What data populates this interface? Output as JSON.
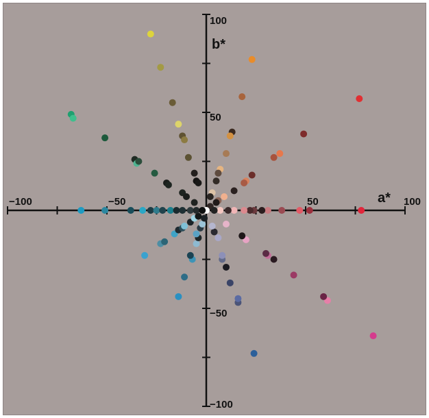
{
  "chart_data": {
    "type": "scatter",
    "xlabel": "a*",
    "ylabel": "b*",
    "xlim": [
      -100,
      100
    ],
    "ylim": [
      -100,
      100
    ],
    "grid": false,
    "x_ticks": [
      -100,
      -50,
      50,
      100
    ],
    "y_ticks": [
      100,
      50,
      -50,
      -100
    ],
    "x_tick_labels": [
      "−100",
      "−50",
      "50",
      "100"
    ],
    "y_tick_labels": [
      "100",
      "50",
      "−50",
      "−100"
    ],
    "points": [
      {
        "a": -28,
        "b": 90,
        "color": "#ddd43c"
      },
      {
        "a": -23,
        "b": 73,
        "color": "#a39a44"
      },
      {
        "a": -17,
        "b": 55,
        "color": "#6a5c37"
      },
      {
        "a": -14,
        "b": 44,
        "color": "#ddd46a"
      },
      {
        "a": -12,
        "b": 38,
        "color": "#5f5232"
      },
      {
        "a": -11,
        "b": 36,
        "color": "#8c7b42"
      },
      {
        "a": -9,
        "b": 27,
        "color": "#5c5233"
      },
      {
        "a": -6,
        "b": 19,
        "color": "#231f1d"
      },
      {
        "a": -5,
        "b": 15,
        "color": "#141312"
      },
      {
        "a": -4,
        "b": 14,
        "color": "#1a1918"
      },
      {
        "a": 23,
        "b": 77,
        "color": "#e98c2a"
      },
      {
        "a": 18,
        "b": 58,
        "color": "#a8643c"
      },
      {
        "a": 13,
        "b": 40,
        "color": "#3b2a20"
      },
      {
        "a": 12,
        "b": 38,
        "color": "#d39142"
      },
      {
        "a": 10,
        "b": 29,
        "color": "#a77b55"
      },
      {
        "a": 7,
        "b": 21,
        "color": "#e6b581"
      },
      {
        "a": 6,
        "b": 19,
        "color": "#5e4b3f"
      },
      {
        "a": 5,
        "b": 15,
        "color": "#322b26"
      },
      {
        "a": 3,
        "b": 9,
        "color": "#dcc2a6"
      },
      {
        "a": 2,
        "b": 7,
        "color": "#2a2522"
      },
      {
        "a": 77,
        "b": 57,
        "color": "#e12f32"
      },
      {
        "a": 49,
        "b": 39,
        "color": "#7e2c2c"
      },
      {
        "a": 37,
        "b": 29,
        "color": "#e7784c"
      },
      {
        "a": 34,
        "b": 27,
        "color": "#a8533d"
      },
      {
        "a": 23,
        "b": 18,
        "color": "#6b2e2a"
      },
      {
        "a": 20,
        "b": 15,
        "color": "#d9825e"
      },
      {
        "a": 19,
        "b": 14,
        "color": "#a85b45"
      },
      {
        "a": 14,
        "b": 10,
        "color": "#2b2120"
      },
      {
        "a": 9,
        "b": 7,
        "color": "#f0b08e"
      },
      {
        "a": 6,
        "b": 5,
        "color": "#8a6456"
      },
      {
        "a": 5,
        "b": 4,
        "color": "#211a19"
      },
      {
        "a": 2,
        "b": 2,
        "color": "#302624"
      },
      {
        "a": 78,
        "b": 0,
        "color": "#e1263b"
      },
      {
        "a": 52,
        "b": 0,
        "color": "#9b2f3c"
      },
      {
        "a": 47,
        "b": 0,
        "color": "#e25a66"
      },
      {
        "a": 38,
        "b": 0,
        "color": "#9a4a52"
      },
      {
        "a": 31,
        "b": 0,
        "color": "#c77b80"
      },
      {
        "a": 28,
        "b": 0,
        "color": "#2a1d1e"
      },
      {
        "a": 24,
        "b": 0,
        "color": "#6b3a3e"
      },
      {
        "a": 22,
        "b": 0,
        "color": "#4b2b2d"
      },
      {
        "a": 19,
        "b": 0,
        "color": "#dc8a8f"
      },
      {
        "a": 14,
        "b": 0,
        "color": "#f0b5b6"
      },
      {
        "a": 11,
        "b": 0,
        "color": "#3a2a2b"
      },
      {
        "a": 7,
        "b": 0,
        "color": "#f3c6c0"
      },
      {
        "a": 4,
        "b": 0,
        "color": "#222"
      },
      {
        "a": 0,
        "b": 0,
        "color": "#ffffff"
      },
      {
        "a": 84,
        "b": -64,
        "color": "#d43c8d"
      },
      {
        "a": 61,
        "b": -46,
        "color": "#e67fa8"
      },
      {
        "a": 59,
        "b": -44,
        "color": "#6a2446"
      },
      {
        "a": 44,
        "b": -33,
        "color": "#9b3b65"
      },
      {
        "a": 34,
        "b": -25,
        "color": "#2a1a21"
      },
      {
        "a": 31,
        "b": -23,
        "color": "#c46d9a"
      },
      {
        "a": 30,
        "b": -22,
        "color": "#5a2c45"
      },
      {
        "a": 20,
        "b": -15,
        "color": "#e7a3c4"
      },
      {
        "a": 18,
        "b": -13,
        "color": "#1e1719"
      },
      {
        "a": 10,
        "b": -7,
        "color": "#e6b4c9"
      },
      {
        "a": 24,
        "b": -73,
        "color": "#2b5f9a"
      },
      {
        "a": 16,
        "b": -47,
        "color": "#4a5478"
      },
      {
        "a": 16,
        "b": -45,
        "color": "#5b6ba3"
      },
      {
        "a": 12,
        "b": -37,
        "color": "#3a4467"
      },
      {
        "a": 10,
        "b": -29,
        "color": "#1b1b22"
      },
      {
        "a": 8,
        "b": -25,
        "color": "#626a8a"
      },
      {
        "a": 8,
        "b": -23,
        "color": "#8d90b8"
      },
      {
        "a": 6,
        "b": -14,
        "color": "#a9a8c8"
      },
      {
        "a": 4,
        "b": -11,
        "color": "#2a2930"
      },
      {
        "a": 3,
        "b": -8,
        "color": "#b5b6cf"
      },
      {
        "a": -14,
        "b": -44,
        "color": "#2a90c2"
      },
      {
        "a": -11,
        "b": -34,
        "color": "#2e6d87"
      },
      {
        "a": -7,
        "b": -25,
        "color": "#3e94b7"
      },
      {
        "a": -8,
        "b": -23,
        "color": "#1b4353"
      },
      {
        "a": -5,
        "b": -17,
        "color": "#8ebad1"
      },
      {
        "a": -4,
        "b": -14,
        "color": "#1e2628"
      },
      {
        "a": -5,
        "b": -12,
        "color": "#5aa2c4"
      },
      {
        "a": -3,
        "b": -9,
        "color": "#2a3a44"
      },
      {
        "a": -2,
        "b": -7,
        "color": "#9cc4d8"
      },
      {
        "a": -1,
        "b": -4,
        "color": "#1b2226"
      },
      {
        "a": -31,
        "b": -23,
        "color": "#3aa2cf"
      },
      {
        "a": -23,
        "b": -17,
        "color": "#4d8ea4"
      },
      {
        "a": -21,
        "b": -16,
        "color": "#2c6576"
      },
      {
        "a": -16,
        "b": -12,
        "color": "#3fa3c6"
      },
      {
        "a": -14,
        "b": -10,
        "color": "#1f2b31"
      },
      {
        "a": -12,
        "b": -9,
        "color": "#2d4f5b"
      },
      {
        "a": -11,
        "b": -8,
        "color": "#7fc0d6"
      },
      {
        "a": -8,
        "b": -6,
        "color": "#1c2428"
      },
      {
        "a": -6,
        "b": -4,
        "color": "#9dd4e3"
      },
      {
        "a": -4,
        "b": -3,
        "color": "#131818"
      },
      {
        "a": -63,
        "b": 0,
        "color": "#1e9bc2"
      },
      {
        "a": -51,
        "b": 0,
        "color": "#2b87a0"
      },
      {
        "a": -38,
        "b": 0,
        "color": "#184d5a"
      },
      {
        "a": -32,
        "b": 0,
        "color": "#2aa7c5"
      },
      {
        "a": -28,
        "b": 0,
        "color": "#1d3c45"
      },
      {
        "a": -25,
        "b": 0,
        "color": "#2f7b8c"
      },
      {
        "a": -22,
        "b": 0,
        "color": "#20434c"
      },
      {
        "a": -18,
        "b": 0,
        "color": "#1b7e8c"
      },
      {
        "a": -15,
        "b": 0,
        "color": "#1a2a2e"
      },
      {
        "a": -12,
        "b": 0,
        "color": "#1e2f33"
      },
      {
        "a": -8,
        "b": 0,
        "color": "#2e3a3d"
      },
      {
        "a": -5,
        "b": 0,
        "color": "#232a2b"
      },
      {
        "a": -2,
        "b": 0,
        "color": "#0e1010"
      },
      {
        "a": -68,
        "b": 49,
        "color": "#1fa070"
      },
      {
        "a": -67,
        "b": 47,
        "color": "#3fbf8d"
      },
      {
        "a": -51,
        "b": 37,
        "color": "#1d5a3c"
      },
      {
        "a": -36,
        "b": 26,
        "color": "#202b24"
      },
      {
        "a": -35,
        "b": 24,
        "color": "#4fb592"
      },
      {
        "a": -34,
        "b": 25,
        "color": "#2b4d3b"
      },
      {
        "a": -26,
        "b": 19,
        "color": "#245a40"
      },
      {
        "a": -20,
        "b": 14,
        "color": "#1a1d1b"
      },
      {
        "a": -19,
        "b": 13,
        "color": "#1e2521"
      },
      {
        "a": -12,
        "b": 9,
        "color": "#1e2420"
      },
      {
        "a": -10,
        "b": 7,
        "color": "#1a1d1b"
      },
      {
        "a": -6,
        "b": 4,
        "color": "#1f2220"
      }
    ]
  }
}
